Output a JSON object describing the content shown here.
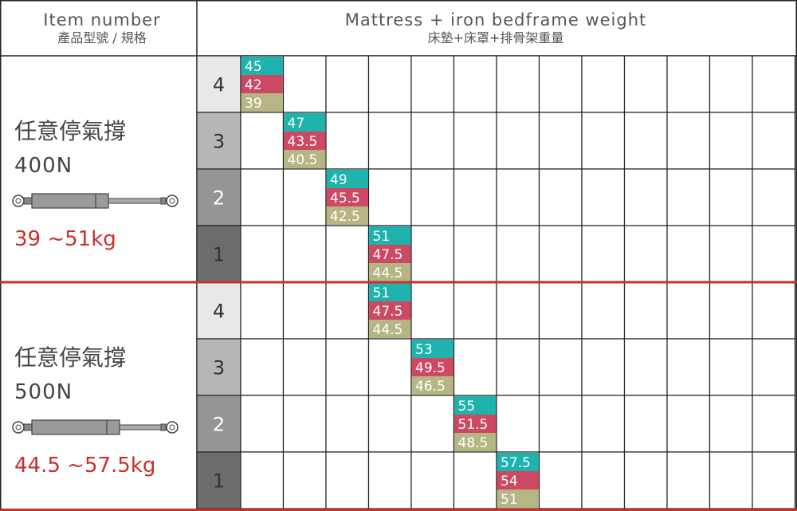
{
  "header": {
    "item_en": "Item number",
    "item_zh": "產品型號 / 規格",
    "weight_en": "Mattress + iron bedframe weight",
    "weight_zh": "床墊+床罩+排骨架重量"
  },
  "colors": {
    "teal": "#1eb3ad",
    "red": "#cd4862",
    "olive": "#b6b684",
    "accent_red": "#c9302c",
    "level_4": "#e8e8e8",
    "level_3": "#b6b6b6",
    "level_2": "#959595",
    "level_1": "#6c6c6c"
  },
  "groups": [
    {
      "name": "任意停氣撐",
      "force": "400N",
      "range": "39 ~51kg",
      "rows": [
        {
          "level": "4",
          "values": [
            "45",
            "42",
            "39"
          ],
          "col": 0
        },
        {
          "level": "3",
          "values": [
            "47",
            "43.5",
            "40.5"
          ],
          "col": 1
        },
        {
          "level": "2",
          "values": [
            "49",
            "45.5",
            "42.5"
          ],
          "col": 2
        },
        {
          "level": "1",
          "values": [
            "51",
            "47.5",
            "44.5"
          ],
          "col": 3
        }
      ]
    },
    {
      "name": "任意停氣撐",
      "force": "500N",
      "range": "44.5 ~57.5kg",
      "rows": [
        {
          "level": "4",
          "values": [
            "51",
            "47.5",
            "44.5"
          ],
          "col": 3
        },
        {
          "level": "3",
          "values": [
            "53",
            "49.5",
            "46.5"
          ],
          "col": 4
        },
        {
          "level": "2",
          "values": [
            "55",
            "51.5",
            "48.5"
          ],
          "col": 5
        },
        {
          "level": "1",
          "values": [
            "57.5",
            "54",
            "51"
          ],
          "col": 6
        }
      ]
    }
  ]
}
